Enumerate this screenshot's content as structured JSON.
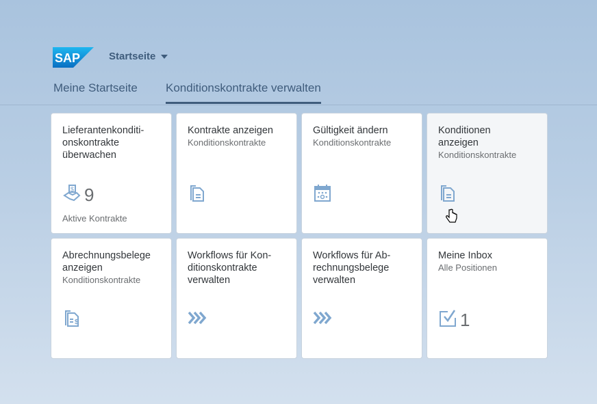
{
  "header": {
    "logo": "SAP",
    "home_label": "Startseite"
  },
  "tabs": [
    {
      "label": "Meine Startseite"
    },
    {
      "label": "Konditionskontrakte verwalten",
      "active": true
    }
  ],
  "tiles": [
    {
      "title": "Lieferantenkonditi-onskontrakte überwachen",
      "title_lines": [
        "Lieferantenkonditi-",
        "onskontrakte",
        "überwachen"
      ],
      "subtitle": "",
      "icon": "money-handshake-icon",
      "number": "9",
      "footer": "Aktive Kontrakte"
    },
    {
      "title_lines": [
        "Kontrakte anzeigen"
      ],
      "subtitle": "Konditionskontrakte",
      "icon": "documents-icon"
    },
    {
      "title_lines": [
        "Gültigkeit ändern"
      ],
      "subtitle": "Konditionskontrakte",
      "icon": "calendar-icon"
    },
    {
      "title_lines": [
        "Konditionen",
        "anzeigen"
      ],
      "subtitle": "Konditionskontrakte",
      "icon": "documents-icon"
    },
    {
      "title_lines": [
        "Abrechnungsbelege",
        "anzeigen"
      ],
      "subtitle": "Konditionskontrakte",
      "icon": "document-money-icon"
    },
    {
      "title_lines": [
        "Workflows für Kon-",
        "ditionskontrakte",
        "verwalten"
      ],
      "subtitle": "",
      "icon": "workflow-chevrons-icon"
    },
    {
      "title_lines": [
        "Workflows für Ab-",
        "rechnungsbelege",
        "verwalten"
      ],
      "subtitle": "",
      "icon": "workflow-chevrons-icon"
    },
    {
      "title_lines": [
        "Meine Inbox"
      ],
      "subtitle": "Alle Positionen",
      "icon": "inbox-check-icon",
      "number": "1"
    }
  ],
  "colors": {
    "icon": "#7fa7cf",
    "brand": "#3f5c7c"
  }
}
